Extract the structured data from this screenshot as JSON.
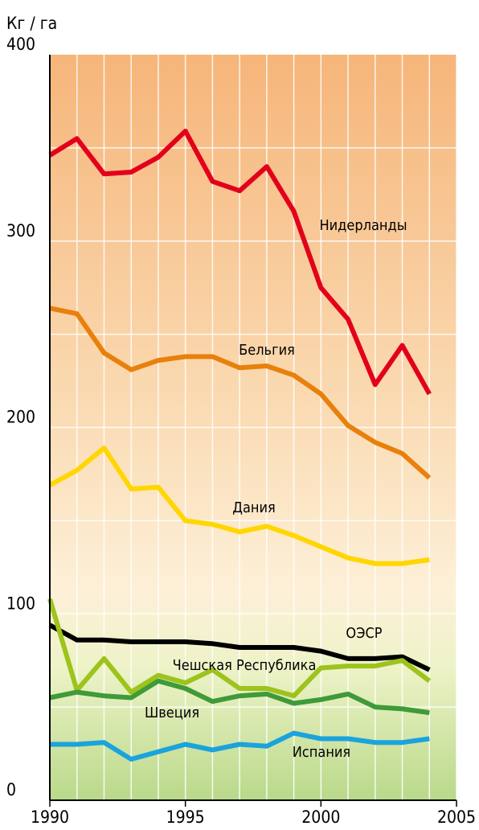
{
  "chart_data": {
    "type": "line",
    "y_axis_label": "Кг / га",
    "x": [
      1990,
      1991,
      1992,
      1993,
      1994,
      1995,
      1996,
      1997,
      1998,
      1999,
      2000,
      2001,
      2002,
      2003,
      2004
    ],
    "xlim": [
      1990,
      2005
    ],
    "xticks": [
      1990,
      1995,
      2000,
      2005
    ],
    "xminor": [
      1991,
      1992,
      1993,
      1994,
      1996,
      1997,
      1998,
      1999,
      2001,
      2002,
      2003,
      2004
    ],
    "ylim": [
      0,
      400
    ],
    "yticks": [
      0,
      100,
      200,
      300,
      400
    ],
    "yminor": [
      50,
      150,
      250,
      350
    ],
    "grid": true,
    "series": [
      {
        "name": "Нидерланды",
        "color": "#e3001b",
        "values": [
          346,
          355,
          336,
          337,
          345,
          359,
          332,
          327,
          340,
          316,
          275,
          258,
          223,
          244,
          218
        ]
      },
      {
        "name": "Бельгия",
        "color": "#e8800c",
        "values": [
          264,
          261,
          240,
          231,
          236,
          238,
          238,
          232,
          233,
          228,
          218,
          201,
          192,
          186,
          173
        ]
      },
      {
        "name": "Дания",
        "color": "#ffd600",
        "values": [
          169,
          177,
          189,
          167,
          168,
          150,
          148,
          144,
          147,
          142,
          136,
          130,
          127,
          127,
          129
        ]
      },
      {
        "name": "ОЭСР",
        "color": "#000000",
        "values": [
          94,
          86,
          86,
          85,
          85,
          85,
          84,
          82,
          82,
          82,
          80,
          76,
          76,
          77,
          70
        ]
      },
      {
        "name": "Чешская Республика",
        "color": "#9dc31c",
        "values": [
          108,
          59,
          76,
          58,
          67,
          63,
          70,
          60,
          60,
          56,
          71,
          72,
          72,
          75,
          64
        ]
      },
      {
        "name": "Швеция",
        "color": "#3f9a38",
        "values": [
          55,
          58,
          56,
          55,
          64,
          60,
          53,
          56,
          57,
          52,
          54,
          57,
          50,
          49,
          47
        ]
      },
      {
        "name": "Испания",
        "color": "#1ba3dc",
        "values": [
          30,
          30,
          31,
          22,
          26,
          30,
          27,
          30,
          29,
          36,
          33,
          33,
          31,
          31,
          33
        ]
      }
    ]
  }
}
